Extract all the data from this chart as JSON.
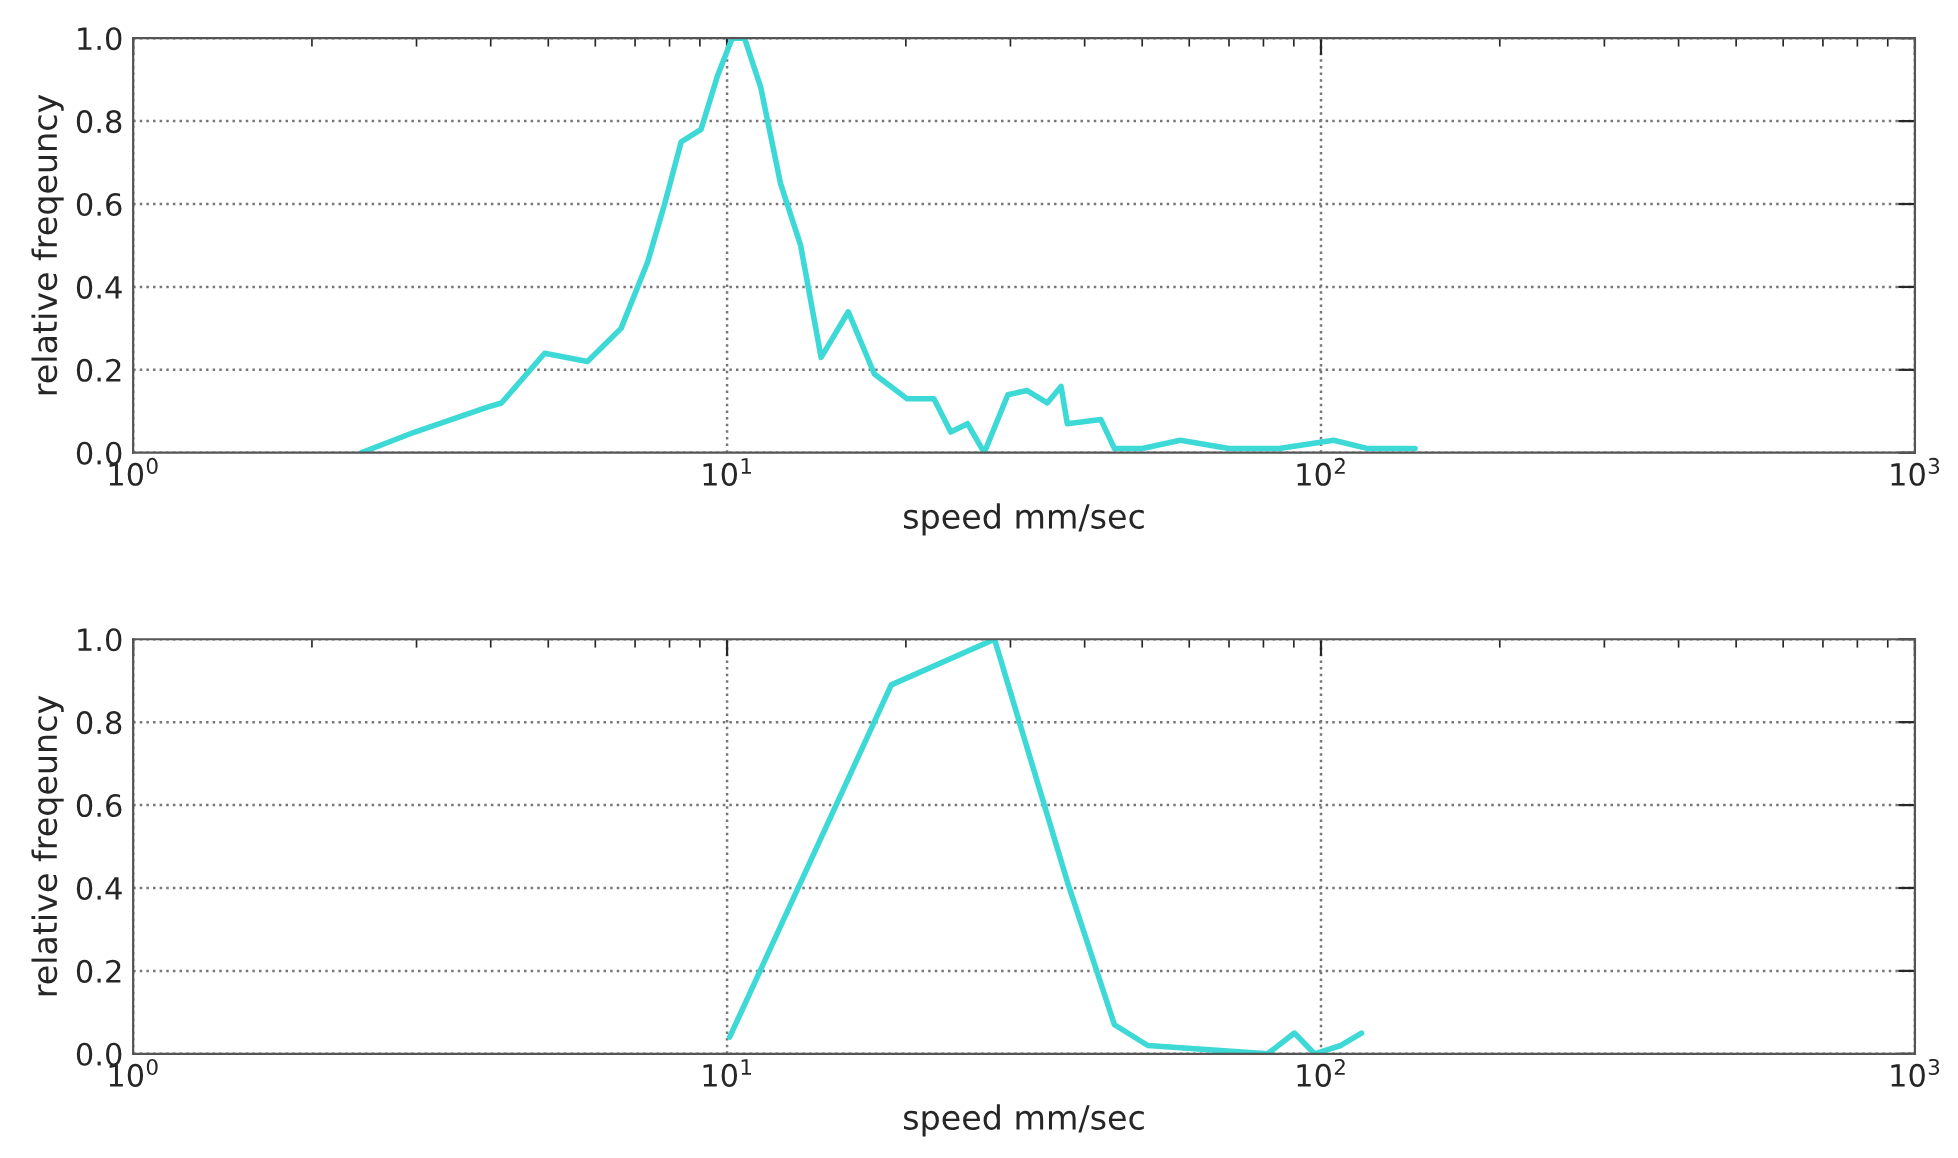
{
  "chart_data": [
    {
      "type": "line",
      "xlabel": "speed mm/sec",
      "ylabel": "relative freqeuncy",
      "log": "x",
      "grid": true,
      "legend": false,
      "xlim": [
        1,
        1000
      ],
      "xticks": [
        {
          "value": 1,
          "label": "10$^{0}$"
        },
        {
          "value": 10,
          "label": "10$^{1}$"
        },
        {
          "value": 100,
          "label": "10$^{2}$"
        },
        {
          "value": 1000,
          "label": "10$^{3}$"
        }
      ],
      "ylim": [
        0,
        1
      ],
      "yticks": [
        {
          "value": 0,
          "label": "0.0"
        },
        {
          "value": 0.2,
          "label": "0.2"
        },
        {
          "value": 0.4,
          "label": "0.4"
        },
        {
          "value": 0.6,
          "label": "0.6"
        },
        {
          "value": 0.8,
          "label": "0.8"
        },
        {
          "value": 1,
          "label": "1.0"
        }
      ],
      "series": [
        {
          "color": "#3dd9d6",
          "x": [
            2.42,
            2.98,
            3.95,
            4.17,
            4.93,
            5.82,
            6.63,
            7.35,
            7.85,
            8.37,
            9.04,
            9.64,
            10.2,
            10.7,
            11.4,
            12.3,
            13.3,
            14.4,
            16.0,
            17.7,
            20.1,
            22.3,
            23.8,
            25.4,
            27.1,
            29.7,
            32.0,
            34.6,
            36.5,
            37.4,
            42.6,
            44.9,
            50,
            58,
            70,
            85,
            105,
            120,
            144
          ],
          "values": [
            0.0,
            0.05,
            0.11,
            0.12,
            0.24,
            0.22,
            0.3,
            0.46,
            0.6,
            0.75,
            0.78,
            0.91,
            1.0,
            1.0,
            0.88,
            0.65,
            0.5,
            0.23,
            0.34,
            0.19,
            0.13,
            0.13,
            0.05,
            0.07,
            0.0,
            0.14,
            0.15,
            0.12,
            0.16,
            0.07,
            0.08,
            0.01,
            0.01,
            0.03,
            0.01,
            0.01,
            0.03,
            0.01,
            0.01
          ]
        }
      ]
    },
    {
      "type": "line",
      "xlabel": "speed mm/sec",
      "ylabel": "relative freqeuncy",
      "log": "x",
      "grid": true,
      "legend": false,
      "xlim": [
        1,
        1000
      ],
      "xticks": [
        {
          "value": 1,
          "label": "10$^{0}$"
        },
        {
          "value": 10,
          "label": "10$^{1}$"
        },
        {
          "value": 100,
          "label": "10$^{2}$"
        },
        {
          "value": 1000,
          "label": "10$^{3}$"
        }
      ],
      "ylim": [
        0,
        1
      ],
      "yticks": [
        {
          "value": 0,
          "label": "0.0"
        },
        {
          "value": 0.2,
          "label": "0.2"
        },
        {
          "value": 0.4,
          "label": "0.4"
        },
        {
          "value": 0.6,
          "label": "0.6"
        },
        {
          "value": 0.8,
          "label": "0.8"
        },
        {
          "value": 1,
          "label": "1.0"
        }
      ],
      "series": [
        {
          "color": "#3dd9d6",
          "x": [
            10.1,
            18.9,
            28.2,
            37.5,
            44.9,
            51.1,
            81.3,
            90.2,
            97.5,
            108,
            117
          ],
          "values": [
            0.04,
            0.89,
            1.0,
            0.41,
            0.07,
            0.02,
            0.0,
            0.05,
            0.0,
            0.02,
            0.05
          ]
        }
      ]
    }
  ]
}
